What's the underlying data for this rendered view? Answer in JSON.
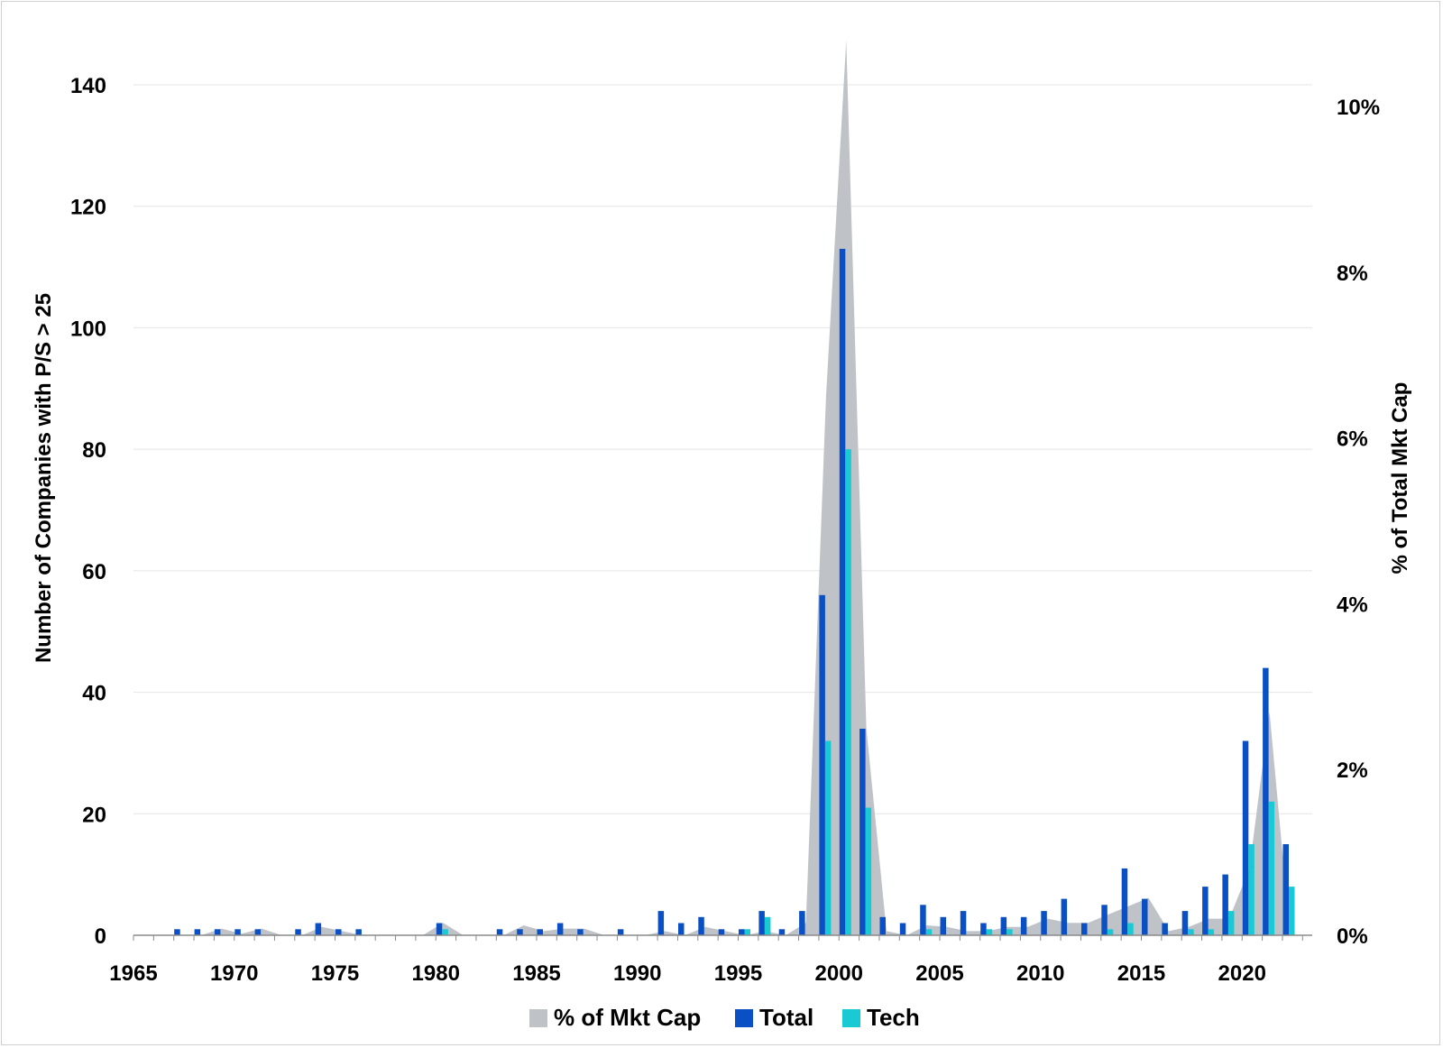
{
  "chart_data": {
    "type": "bar",
    "ylabel": "Number of Companies with P/S > 25",
    "y2label": "% of Total Mkt Cap",
    "xlim": [
      1965,
      2022
    ],
    "ylim": [
      0,
      148
    ],
    "y2lim": [
      0,
      10.8
    ],
    "xticks": [
      1965,
      1970,
      1975,
      1980,
      1985,
      1990,
      1995,
      2000,
      2005,
      2010,
      2015,
      2020
    ],
    "yticks": [
      0,
      20,
      40,
      60,
      80,
      100,
      120,
      140
    ],
    "y2ticks": [
      "0%",
      "2%",
      "4%",
      "6%",
      "8%",
      "10%"
    ],
    "y2tick_values": [
      0,
      2,
      4,
      6,
      8,
      10
    ],
    "grid": "horizontal",
    "legend_position": "bottom",
    "legend": [
      "% of Mkt Cap",
      "Total",
      "Tech"
    ],
    "colors": {
      "area": "#bfc3c8",
      "total": "#0b4fc4",
      "tech": "#19c9d3"
    },
    "x": [
      1965,
      1966,
      1967,
      1968,
      1969,
      1970,
      1971,
      1972,
      1973,
      1974,
      1975,
      1976,
      1977,
      1978,
      1979,
      1980,
      1981,
      1982,
      1983,
      1984,
      1985,
      1986,
      1987,
      1988,
      1989,
      1990,
      1991,
      1992,
      1993,
      1994,
      1995,
      1996,
      1997,
      1998,
      1999,
      2000,
      2001,
      2002,
      2003,
      2004,
      2005,
      2006,
      2007,
      2008,
      2009,
      2010,
      2011,
      2012,
      2013,
      2014,
      2015,
      2016,
      2017,
      2018,
      2019,
      2020,
      2021,
      2022
    ],
    "series": [
      {
        "name": "Total",
        "axis": "left",
        "kind": "bar",
        "values": [
          0,
          0,
          1,
          1,
          1,
          1,
          1,
          0,
          1,
          2,
          1,
          1,
          0,
          0,
          0,
          2,
          0,
          0,
          1,
          1,
          1,
          2,
          1,
          0,
          1,
          0,
          4,
          2,
          3,
          1,
          1,
          4,
          1,
          4,
          56,
          113,
          34,
          3,
          2,
          5,
          3,
          4,
          2,
          3,
          3,
          4,
          6,
          2,
          5,
          11,
          6,
          2,
          4,
          8,
          10,
          32,
          44,
          15
        ]
      },
      {
        "name": "Tech",
        "axis": "left",
        "kind": "bar",
        "values": [
          0,
          0,
          0,
          0,
          0,
          0,
          0,
          0,
          0,
          0,
          0,
          0,
          0,
          0,
          0,
          1,
          0,
          0,
          0,
          0,
          0,
          0,
          0,
          0,
          0,
          0,
          0,
          0,
          0,
          0,
          1,
          3,
          0,
          0,
          32,
          80,
          21,
          0,
          0,
          1,
          0,
          0,
          1,
          1,
          0,
          0,
          0,
          0,
          1,
          2,
          0,
          0,
          1,
          1,
          4,
          15,
          22,
          8
        ]
      },
      {
        "name": "% of Mkt Cap",
        "axis": "right",
        "kind": "area",
        "values": [
          0,
          0,
          0,
          0,
          0.08,
          0.02,
          0.08,
          0,
          0,
          0.1,
          0.05,
          0,
          0,
          0,
          0,
          0.15,
          0,
          0,
          0,
          0.12,
          0.05,
          0.08,
          0.08,
          0,
          0,
          0,
          0.05,
          0,
          0.1,
          0.05,
          0,
          0.05,
          0,
          0.15,
          6.5,
          10.8,
          2.5,
          0.05,
          0,
          0.12,
          0.1,
          0.05,
          0.05,
          0.1,
          0.1,
          0.2,
          0.15,
          0.15,
          0.25,
          0.35,
          0.45,
          0.05,
          0.1,
          0.2,
          0.2,
          0.8,
          2.7,
          0.05
        ]
      }
    ]
  }
}
